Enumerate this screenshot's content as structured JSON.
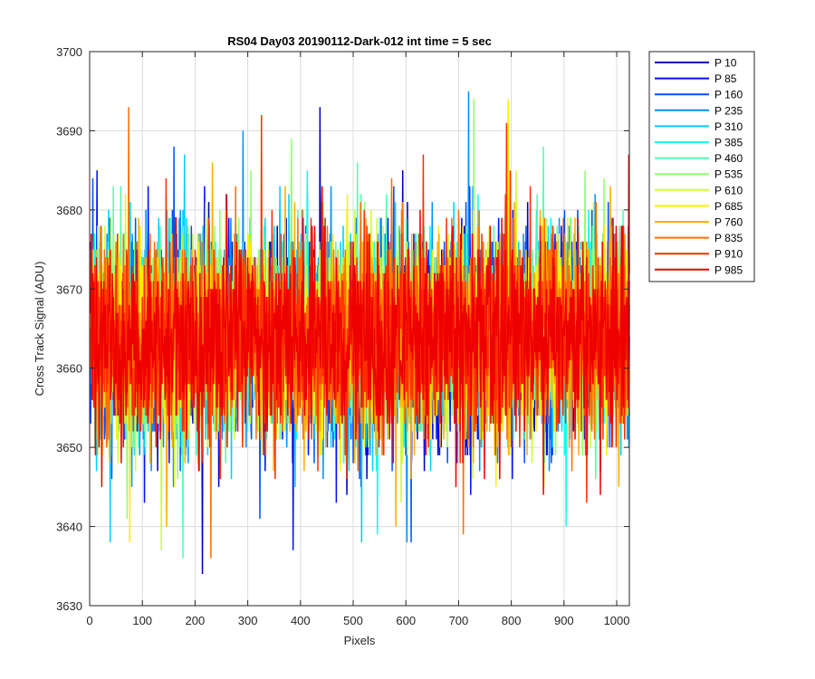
{
  "chart_data": {
    "type": "line",
    "title": "RS04 Day03 20190112-Dark-012 int time = 5 sec",
    "xlabel": "Pixels",
    "ylabel": "Cross Track Signal (ADU)",
    "xlim": [
      0,
      1024
    ],
    "ylim": [
      3630,
      3700
    ],
    "xticks": [
      0,
      100,
      200,
      300,
      400,
      500,
      600,
      700,
      800,
      900,
      1000
    ],
    "yticks": [
      3630,
      3640,
      3650,
      3660,
      3670,
      3680,
      3690,
      3700
    ],
    "grid": true,
    "legend_position": "outside-top-right",
    "series": [
      {
        "name": "P 10",
        "color": "#0000bf",
        "mean": 3664,
        "sd": 6.2,
        "extremes": [
          [
            213,
            3634
          ],
          [
            436,
            3693
          ],
          [
            225,
            3681
          ]
        ]
      },
      {
        "name": "P 85",
        "color": "#0010ff",
        "mean": 3664,
        "sd": 6.2,
        "extremes": [
          [
            385,
            3637
          ],
          [
            13,
            3685
          ],
          [
            720,
            3683
          ]
        ]
      },
      {
        "name": "P 160",
        "color": "#0050ff",
        "mean": 3664,
        "sd": 6.2,
        "extremes": [
          [
            322,
            3641
          ],
          [
            159,
            3688
          ],
          [
            609,
            3638
          ]
        ]
      },
      {
        "name": "P 235",
        "color": "#0090ff",
        "mean": 3664,
        "sd": 6.2,
        "extremes": [
          [
            290,
            3690
          ],
          [
            718,
            3695
          ],
          [
            601,
            3638
          ]
        ]
      },
      {
        "name": "P 310",
        "color": "#00d0ff",
        "mean": 3664,
        "sd": 6.2,
        "extremes": [
          [
            38,
            3638
          ],
          [
            179,
            3687
          ],
          [
            515,
            3638
          ]
        ]
      },
      {
        "name": "P 385",
        "color": "#10ffef",
        "mean": 3664,
        "sd": 6.2,
        "extremes": [
          [
            545,
            3639
          ],
          [
            903,
            3640
          ],
          [
            412,
            3685
          ]
        ]
      },
      {
        "name": "P 460",
        "color": "#50ffaf",
        "mean": 3664,
        "sd": 6.2,
        "extremes": [
          [
            176,
            3636
          ],
          [
            507,
            3686
          ],
          [
            860,
            3688
          ]
        ]
      },
      {
        "name": "P 535",
        "color": "#90ff6f",
        "mean": 3664,
        "sd": 6.2,
        "extremes": [
          [
            728,
            3694
          ],
          [
            382,
            3689
          ],
          [
            70,
            3641
          ]
        ]
      },
      {
        "name": "P 610",
        "color": "#cfff2f",
        "mean": 3664,
        "sd": 6.2,
        "extremes": [
          [
            135,
            3637
          ],
          [
            808,
            3685
          ],
          [
            590,
            3643
          ]
        ]
      },
      {
        "name": "P 685",
        "color": "#ffef00",
        "mean": 3664,
        "sd": 6.2,
        "extremes": [
          [
            793,
            3694
          ],
          [
            75,
            3638
          ],
          [
            488,
            3682
          ]
        ]
      },
      {
        "name": "P 760",
        "color": "#ffaf00",
        "mean": 3664,
        "sd": 6.2,
        "extremes": [
          [
            145,
            3640
          ],
          [
            580,
            3640
          ],
          [
            232,
            3686
          ]
        ]
      },
      {
        "name": "P 835",
        "color": "#ff6f00",
        "mean": 3664,
        "sd": 6.2,
        "extremes": [
          [
            73,
            3693
          ],
          [
            229,
            3636
          ],
          [
            708,
            3639
          ]
        ]
      },
      {
        "name": "P 910",
        "color": "#ff2f00",
        "mean": 3664,
        "sd": 6.2,
        "extremes": [
          [
            790,
            3691
          ],
          [
            632,
            3687
          ],
          [
            325,
            3692
          ]
        ]
      },
      {
        "name": "P 985",
        "color": "#ef0000",
        "mean": 3664,
        "sd": 6.2,
        "extremes": [
          [
            1022,
            3687
          ],
          [
            440,
            3683
          ],
          [
            860,
            3644
          ]
        ]
      }
    ]
  }
}
